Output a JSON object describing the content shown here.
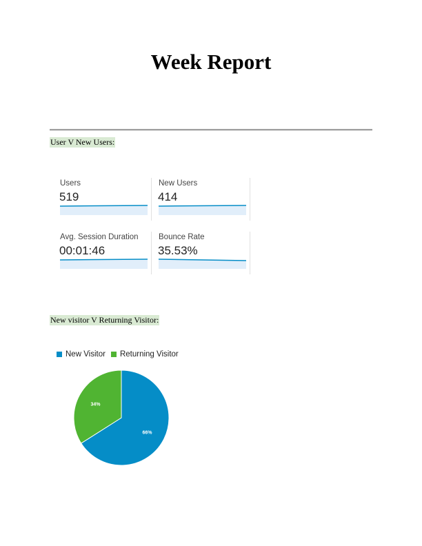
{
  "title": "Week Report",
  "sections": {
    "users": {
      "label": "User V New Users:"
    },
    "visitors": {
      "label": "New visitor V Returning Visitor:"
    }
  },
  "metrics": [
    {
      "label": "Users",
      "value": "519"
    },
    {
      "label": "New Users",
      "value": "414"
    },
    {
      "label": "Avg. Session Duration",
      "value": "00:01:46"
    },
    {
      "label": "Bounce Rate",
      "value": "35.53%"
    }
  ],
  "colors": {
    "new_visitor": "#058dc7",
    "returning_visitor": "#50b432",
    "sparkline": "#058dc7",
    "sparkline_fill": "#e1eefa",
    "section_highlight": "#d9ead3"
  },
  "chart_data": {
    "type": "pie",
    "categories": [
      "New Visitor",
      "Returning Visitor"
    ],
    "values": [
      66,
      34
    ],
    "data_labels": [
      "66%",
      "34%"
    ],
    "legend": "top"
  }
}
